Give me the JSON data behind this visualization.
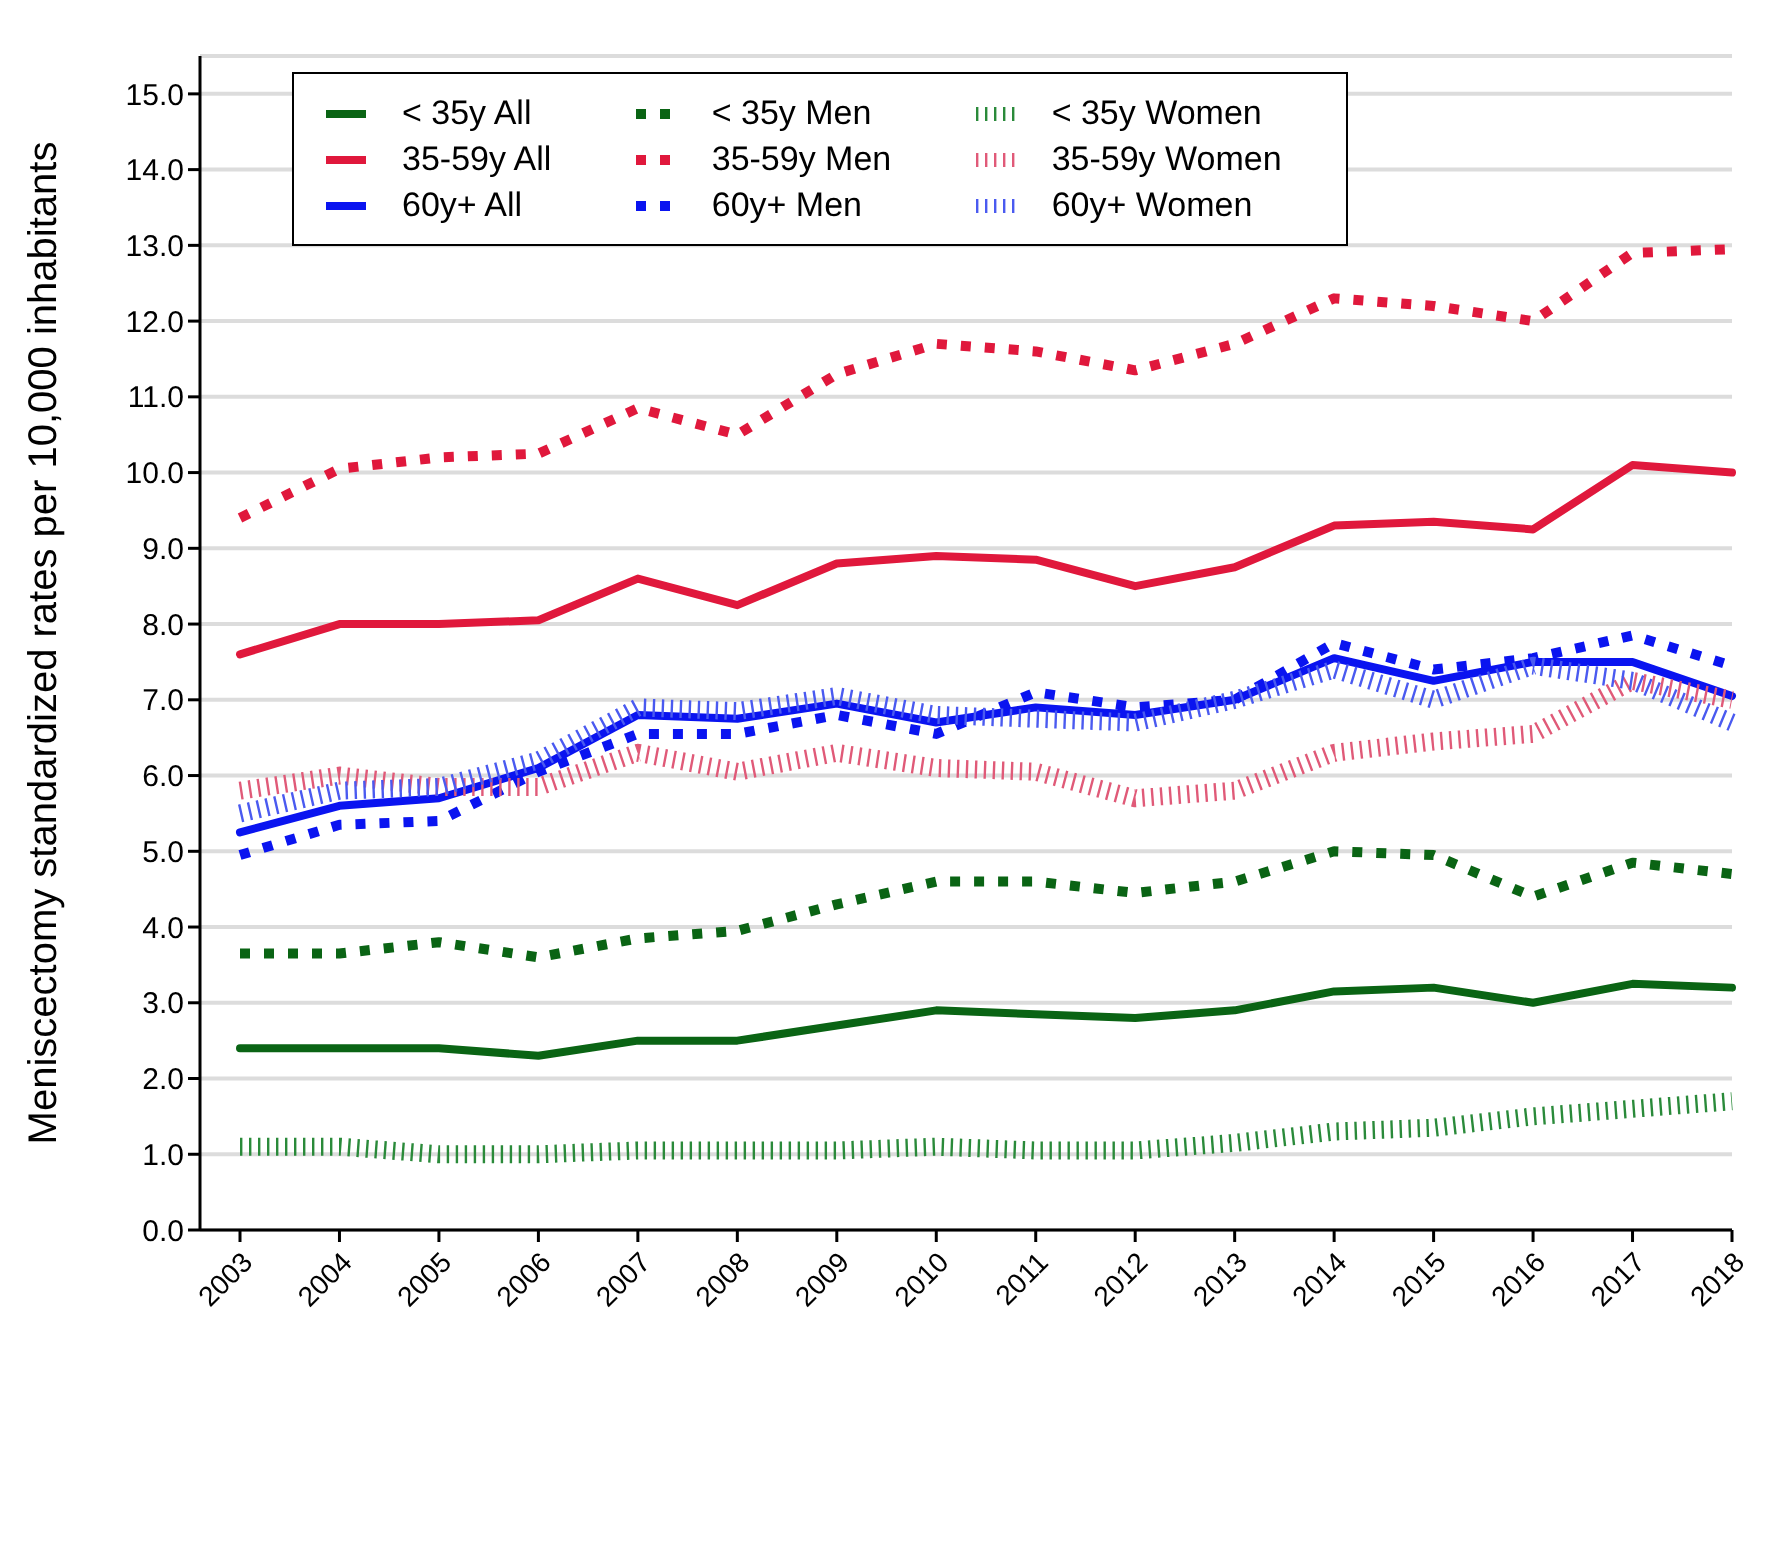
{
  "chart_data": {
    "type": "line",
    "ylabel": "Meniscectomy standardized rates per 10,000 inhabitants",
    "categories": [
      "2003",
      "2004",
      "2005",
      "2006",
      "2007",
      "2008",
      "2009",
      "2010",
      "2011",
      "2012",
      "2013",
      "2014",
      "2015",
      "2016",
      "2017",
      "2018"
    ],
    "ylim": [
      0,
      15.5
    ],
    "yticks": [
      {
        "value": 0,
        "label": "0.0"
      },
      {
        "value": 1,
        "label": "1.0"
      },
      {
        "value": 2,
        "label": "2.0"
      },
      {
        "value": 3,
        "label": "3.0"
      },
      {
        "value": 4,
        "label": "4.0"
      },
      {
        "value": 5,
        "label": "5.0"
      },
      {
        "value": 6,
        "label": "6.0"
      },
      {
        "value": 7,
        "label": "7.0"
      },
      {
        "value": 8,
        "label": "8.0"
      },
      {
        "value": 9,
        "label": "9.0"
      },
      {
        "value": 10,
        "label": "10.0"
      },
      {
        "value": 11,
        "label": "11.0"
      },
      {
        "value": 12,
        "label": "12.0"
      },
      {
        "value": 13,
        "label": "13.0"
      },
      {
        "value": 14,
        "label": "14.0"
      },
      {
        "value": 15,
        "label": "15.0"
      }
    ],
    "grid": "y",
    "legend": "top left",
    "marker": "none",
    "series": [
      {
        "name": "< 35y All",
        "color": "#0a6414",
        "line_style": "solid",
        "values": [
          2.4,
          2.4,
          2.4,
          2.3,
          2.5,
          2.5,
          2.7,
          2.9,
          2.85,
          2.8,
          2.9,
          3.15,
          3.2,
          3.0,
          3.25,
          3.2
        ]
      },
      {
        "name": "35-59y All",
        "color": "#e0183c",
        "line_style": "solid",
        "values": [
          7.6,
          8.0,
          8.0,
          8.05,
          8.6,
          8.25,
          8.8,
          8.9,
          8.85,
          8.5,
          8.75,
          9.3,
          9.35,
          9.25,
          10.1,
          10.0
        ]
      },
      {
        "name": "60y+ All",
        "color": "#0a14f0",
        "line_style": "solid",
        "values": [
          5.25,
          5.6,
          5.7,
          6.1,
          6.8,
          6.75,
          6.95,
          6.7,
          6.9,
          6.8,
          7.0,
          7.55,
          7.25,
          7.5,
          7.5,
          7.05
        ]
      },
      {
        "name": "< 35y Men",
        "color": "#0a6414",
        "line_style": "dotted",
        "values": [
          3.65,
          3.65,
          3.8,
          3.6,
          3.85,
          3.95,
          4.3,
          4.6,
          4.6,
          4.45,
          4.6,
          5.0,
          4.95,
          4.4,
          4.85,
          4.7
        ]
      },
      {
        "name": "35-59y Men",
        "color": "#e0183c",
        "line_style": "dotted",
        "values": [
          9.4,
          10.05,
          10.2,
          10.25,
          10.85,
          10.5,
          11.3,
          11.7,
          11.6,
          11.35,
          11.7,
          12.3,
          12.2,
          12.0,
          12.9,
          12.95
        ]
      },
      {
        "name": "60y+ Men",
        "color": "#0a14f0",
        "line_style": "dotted",
        "values": [
          4.95,
          5.35,
          5.4,
          6.05,
          6.55,
          6.55,
          6.8,
          6.55,
          7.1,
          6.9,
          7.0,
          7.75,
          7.4,
          7.55,
          7.85,
          7.45
        ]
      },
      {
        "name": "< 35y Women",
        "color": "#2a8a3a",
        "line_style": "dashed",
        "values": [
          1.1,
          1.1,
          1.0,
          1.0,
          1.05,
          1.05,
          1.05,
          1.1,
          1.05,
          1.05,
          1.15,
          1.3,
          1.35,
          1.5,
          1.6,
          1.7
        ]
      },
      {
        "name": "35-59y Women",
        "color": "#e05a78",
        "line_style": "dashed",
        "values": [
          5.8,
          6.0,
          5.85,
          5.85,
          6.3,
          6.05,
          6.3,
          6.1,
          6.05,
          5.7,
          5.8,
          6.3,
          6.45,
          6.55,
          7.25,
          7.0
        ]
      },
      {
        "name": "60y+ Women",
        "color": "#4a5af0",
        "line_style": "dashed",
        "values": [
          5.5,
          5.8,
          5.85,
          6.2,
          6.9,
          6.85,
          7.05,
          6.8,
          6.75,
          6.7,
          7.0,
          7.4,
          7.0,
          7.45,
          7.25,
          6.7
        ]
      }
    ]
  }
}
